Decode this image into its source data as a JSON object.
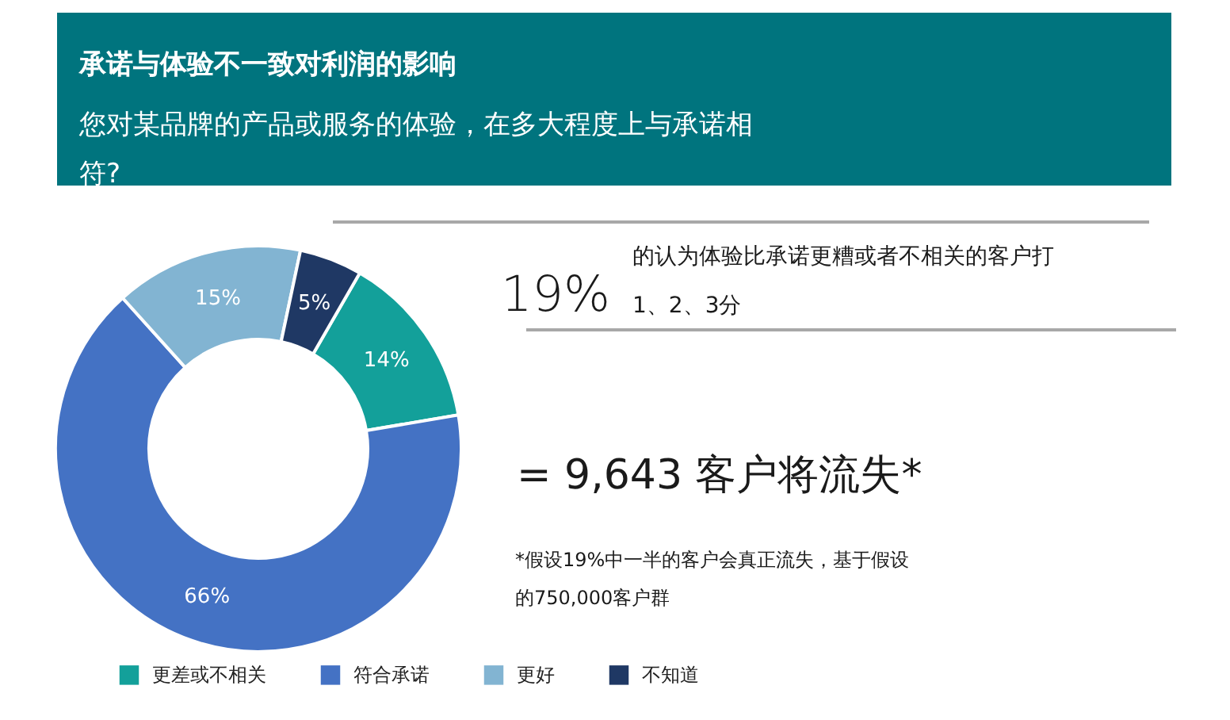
{
  "chart_data": {
    "type": "donut",
    "title": "承诺与体验不一致对利润的影响",
    "subtitle": "您对某品牌的产品或服务的体验，在多大程度上与承诺相符?",
    "categories": [
      "更差或不相关",
      "符合承诺",
      "更好",
      "不知道"
    ],
    "values": [
      14,
      66,
      15,
      5
    ],
    "colors": [
      "#13a09a",
      "#4472c4",
      "#82b4d2",
      "#1f3864"
    ],
    "value_labels": [
      "14%",
      "66%",
      "15%",
      "5%"
    ],
    "legend": "bottom",
    "annotations": [
      "19%",
      "的认为体验比承诺更糟或者不相关的客户打1、2、3分",
      "= 9,643 客户将流失*",
      "*假设19%中一半的客户会真正流失，基于假设的750,000客户群"
    ]
  }
}
